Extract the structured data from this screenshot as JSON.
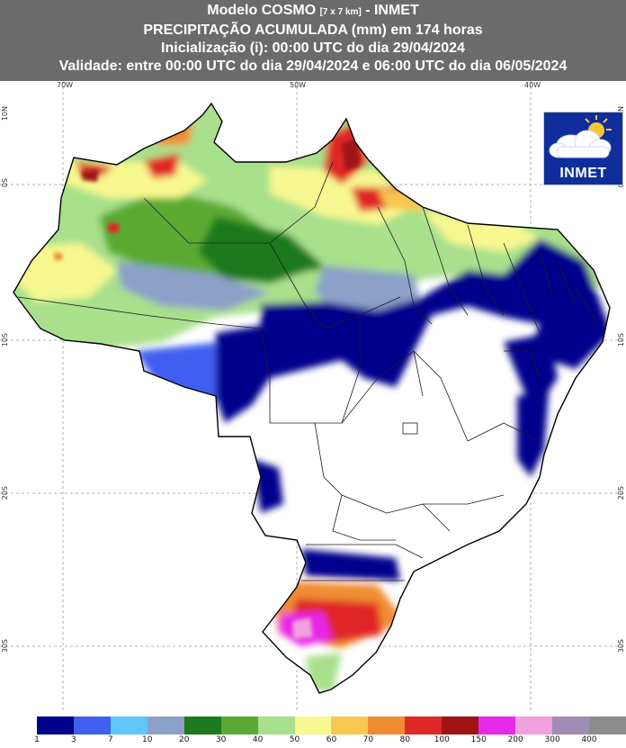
{
  "header": {
    "model": "Modelo COSMO",
    "resolution": "[7 x 7 km]",
    "agency_suffix": "- INMET",
    "title": "PRECIPITAÇÃO ACUMULADA (mm) em 174 horas",
    "init": "Inicialização (i): 00:00 UTC do dia 29/04/2024",
    "validity": "Validade: entre 00:00 UTC do dia 29/04/2024 e 06:00 UTC do dia 06/05/2024"
  },
  "logo": {
    "text": "INMET",
    "icon": "cloud-sun-icon"
  },
  "grid": {
    "lon_labels": [
      "70W",
      "50W",
      "40W"
    ],
    "lat_labels_left": [
      "10N",
      "0S",
      "10S",
      "20S",
      "30S"
    ],
    "lat_labels_right": [
      "10N",
      "0S",
      "10S",
      "20S",
      "30S"
    ]
  },
  "legend": {
    "ticks": [
      "1",
      "3",
      "7",
      "10",
      "20",
      "30",
      "40",
      "50",
      "60",
      "70",
      "80",
      "100",
      "150",
      "200",
      "300",
      "400"
    ],
    "colors": [
      "#ffffff",
      "#00008c",
      "#3f5ff0",
      "#5fc8f8",
      "#8ca0c8",
      "#1e7a1e",
      "#5aaa32",
      "#a8e08c",
      "#f8f890",
      "#f8c850",
      "#f08c32",
      "#e02828",
      "#a01414",
      "#e828e8",
      "#f0a0dc",
      "#a08cb4",
      "#8c8c8c"
    ]
  }
}
